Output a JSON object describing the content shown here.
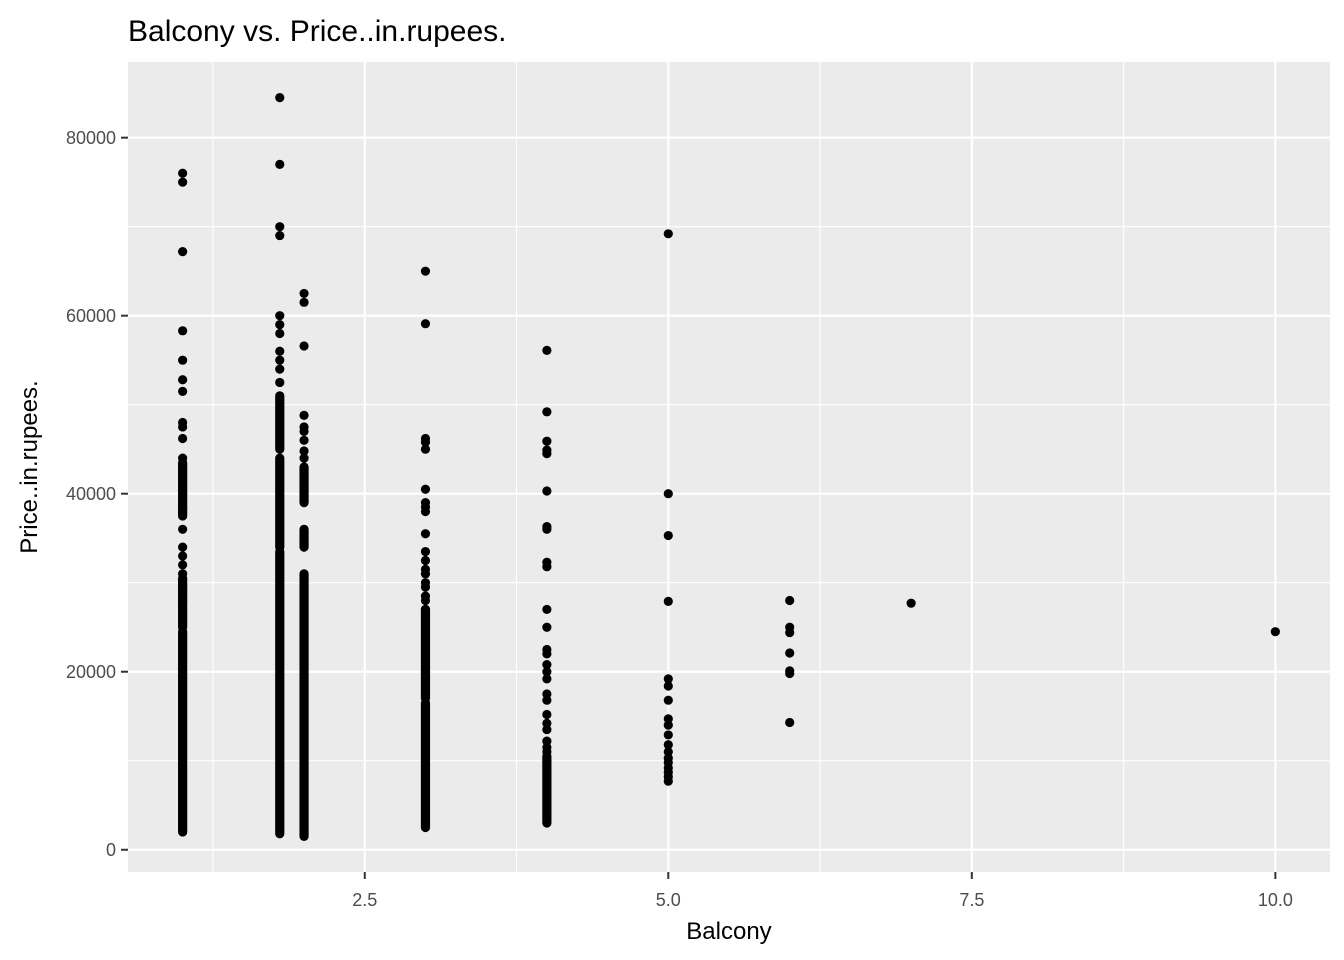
{
  "chart_data": {
    "type": "scatter",
    "title": "Balcony vs. Price..in.rupees.",
    "xlabel": "Balcony",
    "ylabel": "Price..in.rupees.",
    "xlim": [
      0.55,
      10.45
    ],
    "ylim": [
      -2500,
      88500
    ],
    "x_ticks": [
      2.5,
      5.0,
      7.5,
      10.0
    ],
    "x_tick_labels": [
      "2.5",
      "5.0",
      "7.5",
      "10.0"
    ],
    "y_ticks": [
      0,
      20000,
      40000,
      60000,
      80000
    ],
    "y_tick_labels": [
      "0",
      "20000",
      "40000",
      "60000",
      "80000"
    ],
    "grid": true,
    "panel_background": "#ebebeb",
    "grid_color": "#ffffff",
    "point_color": "#000000",
    "series": [
      {
        "x": 1.0,
        "dense_ranges": [
          [
            2000,
            24500
          ],
          [
            25000,
            30500
          ],
          [
            37500,
            43500
          ]
        ],
        "points": [
          76000,
          75000,
          67200,
          58300,
          55000,
          52800,
          51500,
          48000,
          47500,
          46200,
          44000,
          42500,
          40000,
          38500,
          36000,
          34000,
          33000,
          32000,
          31000,
          29500,
          28000
        ]
      },
      {
        "x": 1.8,
        "dense_ranges": [
          [
            1800,
            33500
          ],
          [
            34000,
            44000
          ],
          [
            45000,
            51000
          ]
        ],
        "points": [
          84500,
          77000,
          70000,
          69000,
          60000,
          59000,
          58000,
          56000,
          55000,
          54000,
          52500
        ]
      },
      {
        "x": 2.0,
        "dense_ranges": [
          [
            1500,
            31000
          ],
          [
            34000,
            36000
          ],
          [
            39000,
            43000
          ]
        ],
        "points": [
          62500,
          61500,
          56600,
          48800,
          47500,
          47000,
          46000,
          44800,
          44000
        ]
      },
      {
        "x": 3.0,
        "dense_ranges": [
          [
            2500,
            16500
          ],
          [
            17000,
            27000
          ]
        ],
        "points": [
          65000,
          59100,
          46200,
          45800,
          45000,
          40500,
          39000,
          38500,
          38000,
          35500,
          33500,
          32500,
          31500,
          31000,
          30000,
          29500,
          28500,
          28000,
          27000
        ]
      },
      {
        "x": 4.0,
        "dense_ranges": [
          [
            3000,
            10500
          ]
        ],
        "points": [
          56100,
          49200,
          45900,
          44900,
          44500,
          40300,
          36300,
          36000,
          32300,
          31800,
          27000,
          25000,
          22500,
          22000,
          20800,
          20000,
          19200,
          17500,
          16800,
          15200,
          14200,
          13500,
          12200,
          11500,
          11000
        ]
      },
      {
        "x": 5.0,
        "points": [
          69200,
          40000,
          35300,
          27900,
          19200,
          18400,
          16800,
          14700,
          14000,
          12900,
          11800,
          11000,
          10300,
          9800,
          9200,
          8700,
          8200,
          7700
        ]
      },
      {
        "x": 6.0,
        "points": [
          28000,
          25000,
          24400,
          22100,
          20100,
          19800,
          14300
        ]
      },
      {
        "x": 7.0,
        "points": [
          27700
        ]
      },
      {
        "x": 10.0,
        "points": [
          24500
        ]
      }
    ]
  }
}
